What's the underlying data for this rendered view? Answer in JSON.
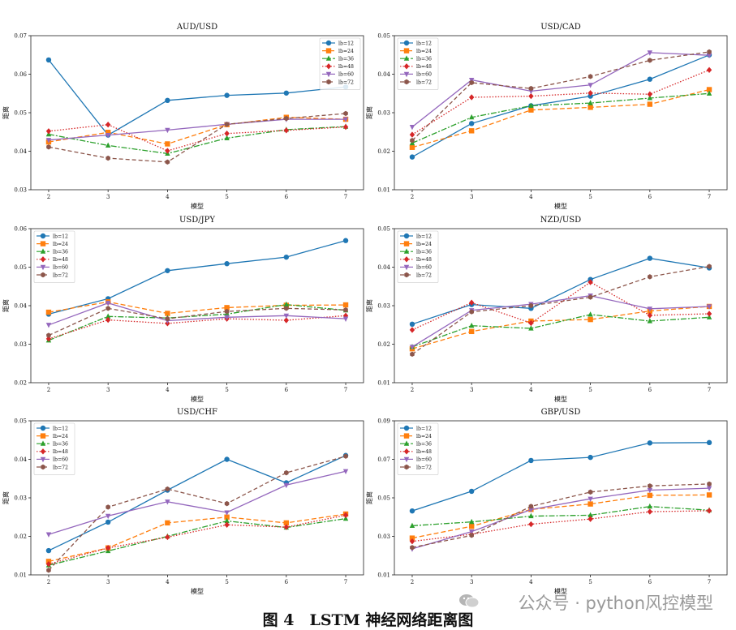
{
  "figure": {
    "caption": "图 4　LSTM 神经网络距离图",
    "watermark": "公众号 · python风控模型",
    "line_color_note": "tab10"
  },
  "series_styles": [
    {
      "name": "lb=12",
      "color": "#1f77b4",
      "dash": "",
      "marker": "circle"
    },
    {
      "name": "lb=24",
      "color": "#ff7f0e",
      "dash": "6,3",
      "marker": "square"
    },
    {
      "name": "lb=36",
      "color": "#2ca02c",
      "dash": "7,2,2,2",
      "marker": "triangle-up"
    },
    {
      "name": "lb=48",
      "color": "#d62728",
      "dash": "1.5,2",
      "marker": "diamond"
    },
    {
      "name": "lb=60",
      "color": "#9467bd",
      "dash": "",
      "marker": "triangle-down"
    },
    {
      "name": "lb=72",
      "color": "#8c564b",
      "dash": "5,3",
      "marker": "hexagon"
    }
  ],
  "chart_data": [
    {
      "type": "line",
      "title": "AUD/USD",
      "xlabel": "模型",
      "ylabel": "距离",
      "x": [
        2,
        3,
        4,
        5,
        6,
        7
      ],
      "ylim": [
        0.03,
        0.07
      ],
      "yticks": [
        "0.03",
        "0.04",
        "0.05",
        "0.06",
        "0.07"
      ],
      "legend_position": "top-right",
      "series": [
        {
          "name": "lb=12",
          "values": [
            0.0637,
            0.0442,
            0.0532,
            0.0545,
            0.0551,
            0.0567
          ]
        },
        {
          "name": "lb=24",
          "values": [
            0.0424,
            0.0449,
            0.0419,
            0.0469,
            0.0488,
            0.0483
          ]
        },
        {
          "name": "lb=36",
          "values": [
            0.0444,
            0.0415,
            0.0394,
            0.0434,
            0.0456,
            0.0464
          ]
        },
        {
          "name": "lb=48",
          "values": [
            0.0452,
            0.0469,
            0.0401,
            0.0446,
            0.0454,
            0.0463
          ]
        },
        {
          "name": "lb=60",
          "values": [
            0.0429,
            0.0442,
            0.0455,
            0.047,
            0.0483,
            0.0483
          ]
        },
        {
          "name": "lb=72",
          "values": [
            0.0411,
            0.0382,
            0.0372,
            0.047,
            0.0485,
            0.0498
          ]
        }
      ]
    },
    {
      "type": "line",
      "title": "USD/CAD",
      "xlabel": "模型",
      "ylabel": "距离",
      "x": [
        2,
        3,
        4,
        5,
        6,
        7
      ],
      "ylim": [
        0.01,
        0.05
      ],
      "yticks": [
        "0.01",
        "0.02",
        "0.03",
        "0.04",
        "0.05"
      ],
      "legend_position": "top-left",
      "series": [
        {
          "name": "lb=12",
          "values": [
            0.0185,
            0.0272,
            0.0318,
            0.0343,
            0.0387,
            0.045
          ]
        },
        {
          "name": "lb=24",
          "values": [
            0.021,
            0.0253,
            0.0307,
            0.0314,
            0.0322,
            0.036
          ]
        },
        {
          "name": "lb=36",
          "values": [
            0.0221,
            0.0288,
            0.0318,
            0.0325,
            0.0338,
            0.035
          ]
        },
        {
          "name": "lb=48",
          "values": [
            0.0243,
            0.034,
            0.0343,
            0.0351,
            0.0348,
            0.0411
          ]
        },
        {
          "name": "lb=60",
          "values": [
            0.0263,
            0.0385,
            0.0356,
            0.0372,
            0.0456,
            0.0449
          ]
        },
        {
          "name": "lb=72",
          "values": [
            0.0228,
            0.0378,
            0.0363,
            0.0394,
            0.0436,
            0.0458
          ]
        }
      ]
    },
    {
      "type": "line",
      "title": "USD/JPY",
      "xlabel": "模型",
      "ylabel": "距离",
      "x": [
        2,
        3,
        4,
        5,
        6,
        7
      ],
      "ylim": [
        0.02,
        0.06
      ],
      "yticks": [
        "0.02",
        "0.03",
        "0.04",
        "0.05",
        "0.06"
      ],
      "legend_position": "top-left",
      "series": [
        {
          "name": "lb=12",
          "values": [
            0.0378,
            0.0418,
            0.0491,
            0.0509,
            0.0526,
            0.0569
          ]
        },
        {
          "name": "lb=24",
          "values": [
            0.0383,
            0.041,
            0.038,
            0.0395,
            0.0401,
            0.0402
          ]
        },
        {
          "name": "lb=36",
          "values": [
            0.031,
            0.0372,
            0.0368,
            0.0378,
            0.0403,
            0.0388
          ]
        },
        {
          "name": "lb=48",
          "values": [
            0.0314,
            0.0363,
            0.0354,
            0.0366,
            0.0362,
            0.0374
          ]
        },
        {
          "name": "lb=60",
          "values": [
            0.035,
            0.0407,
            0.0361,
            0.037,
            0.0374,
            0.0366
          ]
        },
        {
          "name": "lb=72",
          "values": [
            0.0323,
            0.0393,
            0.0366,
            0.0385,
            0.0393,
            0.0389
          ]
        }
      ]
    },
    {
      "type": "line",
      "title": "NZD/USD",
      "xlabel": "模型",
      "ylabel": "距离",
      "x": [
        2,
        3,
        4,
        5,
        6,
        7
      ],
      "ylim": [
        0.01,
        0.05
      ],
      "yticks": [
        "0.01",
        "0.02",
        "0.03",
        "0.04",
        "0.05"
      ],
      "legend_position": "top-left",
      "series": [
        {
          "name": "lb=12",
          "values": [
            0.0252,
            0.0303,
            0.0293,
            0.0368,
            0.0423,
            0.0398
          ]
        },
        {
          "name": "lb=24",
          "values": [
            0.0188,
            0.0233,
            0.026,
            0.0264,
            0.0286,
            0.0298
          ]
        },
        {
          "name": "lb=36",
          "values": [
            0.0193,
            0.0248,
            0.0241,
            0.0277,
            0.026,
            0.027
          ]
        },
        {
          "name": "lb=48",
          "values": [
            0.0237,
            0.0308,
            0.0255,
            0.0361,
            0.0275,
            0.0279
          ]
        },
        {
          "name": "lb=60",
          "values": [
            0.0193,
            0.0288,
            0.0304,
            0.0326,
            0.0292,
            0.0298
          ]
        },
        {
          "name": "lb=72",
          "values": [
            0.0174,
            0.0284,
            0.03,
            0.0322,
            0.0375,
            0.0402
          ]
        }
      ]
    },
    {
      "type": "line",
      "title": "USD/CHF",
      "xlabel": "模型",
      "ylabel": "距离",
      "x": [
        2,
        3,
        4,
        5,
        6,
        7
      ],
      "ylim": [
        0.01,
        0.05
      ],
      "yticks": [
        "0.01",
        "0.02",
        "0.03",
        "0.04",
        "0.05"
      ],
      "legend_position": "top-left",
      "series": [
        {
          "name": "lb=12",
          "values": [
            0.0163,
            0.0237,
            0.032,
            0.04,
            0.0339,
            0.041
          ]
        },
        {
          "name": "lb=24",
          "values": [
            0.0135,
            0.017,
            0.0235,
            0.025,
            0.0235,
            0.0258
          ]
        },
        {
          "name": "lb=36",
          "values": [
            0.0125,
            0.0162,
            0.02,
            0.024,
            0.0223,
            0.0246
          ]
        },
        {
          "name": "lb=48",
          "values": [
            0.0128,
            0.017,
            0.0198,
            0.023,
            0.0224,
            0.0255
          ]
        },
        {
          "name": "lb=60",
          "values": [
            0.0205,
            0.0253,
            0.029,
            0.0262,
            0.0333,
            0.0369
          ]
        },
        {
          "name": "lb=72",
          "values": [
            0.0112,
            0.0276,
            0.0323,
            0.0285,
            0.0365,
            0.0408
          ]
        }
      ]
    },
    {
      "type": "line",
      "title": "GBP/USD",
      "xlabel": "模型",
      "ylabel": "距离",
      "x": [
        2,
        3,
        4,
        5,
        6,
        7
      ],
      "ylim": [
        0.01,
        0.09
      ],
      "yticks": [
        "0.01",
        "0.03",
        "0.05",
        "0.07",
        "0.09"
      ],
      "legend_position": "top-left",
      "series": [
        {
          "name": "lb=12",
          "values": [
            0.0432,
            0.0534,
            0.0694,
            0.071,
            0.0785,
            0.0787
          ]
        },
        {
          "name": "lb=24",
          "values": [
            0.0291,
            0.0352,
            0.044,
            0.0468,
            0.0513,
            0.0515
          ]
        },
        {
          "name": "lb=36",
          "values": [
            0.0355,
            0.0375,
            0.0405,
            0.041,
            0.0455,
            0.0436
          ]
        },
        {
          "name": "lb=48",
          "values": [
            0.0274,
            0.0311,
            0.0363,
            0.039,
            0.0428,
            0.0433
          ]
        },
        {
          "name": "lb=60",
          "values": [
            0.0235,
            0.0325,
            0.0439,
            0.0495,
            0.054,
            0.055
          ]
        },
        {
          "name": "lb=72",
          "values": [
            0.0242,
            0.0305,
            0.0456,
            0.053,
            0.0562,
            0.0572
          ]
        }
      ]
    }
  ]
}
